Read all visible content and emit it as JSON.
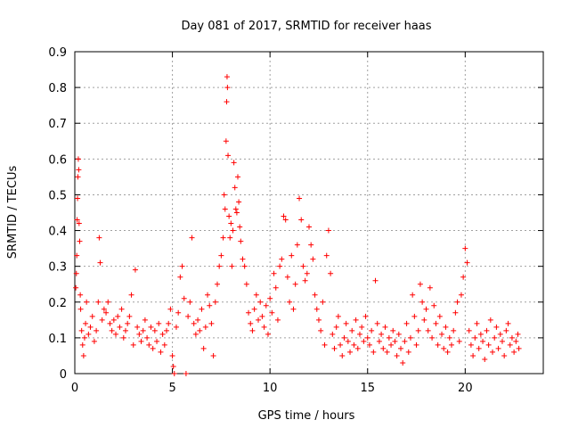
{
  "chart_data": {
    "type": "scatter",
    "title": "Day 081 of 2017, SRMTID for receiver haas",
    "xlabel": "GPS time / hours",
    "ylabel": "SRMTID / TECUs",
    "xlim": [
      0,
      24
    ],
    "ylim": [
      0,
      0.9
    ],
    "xticks": [
      0,
      5,
      10,
      15,
      20
    ],
    "yticks": [
      0,
      0.1,
      0.2,
      0.3,
      0.4,
      0.5,
      0.6,
      0.7,
      0.8,
      0.9
    ],
    "xtick_labels": [
      "0",
      "5",
      "10",
      "15",
      "20"
    ],
    "ytick_labels": [
      "0",
      "0.1",
      "0.2",
      "0.3",
      "0.4",
      "0.5",
      "0.6",
      "0.7",
      "0.8",
      "0.9"
    ],
    "grid": true,
    "marker": "+",
    "series_color": "#ff0000",
    "series": [
      {
        "name": "SRMTID",
        "points": [
          [
            0.05,
            0.24
          ],
          [
            0.08,
            0.28
          ],
          [
            0.1,
            0.33
          ],
          [
            0.12,
            0.43
          ],
          [
            0.14,
            0.49
          ],
          [
            0.16,
            0.55
          ],
          [
            0.18,
            0.6
          ],
          [
            0.2,
            0.57
          ],
          [
            0.22,
            0.42
          ],
          [
            0.25,
            0.37
          ],
          [
            0.28,
            0.22
          ],
          [
            0.3,
            0.18
          ],
          [
            0.35,
            0.12
          ],
          [
            0.4,
            0.08
          ],
          [
            0.45,
            0.05
          ],
          [
            0.5,
            0.1
          ],
          [
            0.55,
            0.14
          ],
          [
            0.6,
            0.2
          ],
          [
            0.7,
            0.11
          ],
          [
            0.8,
            0.13
          ],
          [
            0.9,
            0.16
          ],
          [
            1.0,
            0.09
          ],
          [
            1.1,
            0.12
          ],
          [
            1.2,
            0.2
          ],
          [
            1.25,
            0.38
          ],
          [
            1.3,
            0.31
          ],
          [
            1.4,
            0.15
          ],
          [
            1.5,
            0.18
          ],
          [
            1.6,
            0.17
          ],
          [
            1.7,
            0.2
          ],
          [
            1.8,
            0.14
          ],
          [
            1.9,
            0.12
          ],
          [
            2.0,
            0.15
          ],
          [
            2.1,
            0.11
          ],
          [
            2.2,
            0.16
          ],
          [
            2.3,
            0.13
          ],
          [
            2.4,
            0.18
          ],
          [
            2.5,
            0.1
          ],
          [
            2.6,
            0.12
          ],
          [
            2.7,
            0.14
          ],
          [
            2.8,
            0.16
          ],
          [
            2.9,
            0.22
          ],
          [
            3.0,
            0.08
          ],
          [
            3.1,
            0.29
          ],
          [
            3.2,
            0.13
          ],
          [
            3.3,
            0.11
          ],
          [
            3.4,
            0.09
          ],
          [
            3.5,
            0.12
          ],
          [
            3.6,
            0.15
          ],
          [
            3.7,
            0.1
          ],
          [
            3.8,
            0.08
          ],
          [
            3.9,
            0.13
          ],
          [
            4.0,
            0.07
          ],
          [
            4.1,
            0.12
          ],
          [
            4.2,
            0.09
          ],
          [
            4.3,
            0.14
          ],
          [
            4.4,
            0.06
          ],
          [
            4.5,
            0.11
          ],
          [
            4.6,
            0.08
          ],
          [
            4.7,
            0.12
          ],
          [
            4.8,
            0.14
          ],
          [
            4.9,
            0.18
          ],
          [
            5.0,
            0.05
          ],
          [
            5.05,
            0.02
          ],
          [
            5.1,
            0.0
          ],
          [
            5.2,
            0.13
          ],
          [
            5.3,
            0.17
          ],
          [
            5.4,
            0.27
          ],
          [
            5.5,
            0.3
          ],
          [
            5.6,
            0.21
          ],
          [
            5.7,
            0.0
          ],
          [
            5.8,
            0.16
          ],
          [
            5.9,
            0.2
          ],
          [
            6.0,
            0.38
          ],
          [
            6.1,
            0.14
          ],
          [
            6.2,
            0.11
          ],
          [
            6.3,
            0.15
          ],
          [
            6.4,
            0.12
          ],
          [
            6.5,
            0.18
          ],
          [
            6.6,
            0.07
          ],
          [
            6.7,
            0.13
          ],
          [
            6.8,
            0.22
          ],
          [
            6.9,
            0.19
          ],
          [
            7.0,
            0.14
          ],
          [
            7.1,
            0.05
          ],
          [
            7.2,
            0.2
          ],
          [
            7.3,
            0.25
          ],
          [
            7.4,
            0.3
          ],
          [
            7.5,
            0.33
          ],
          [
            7.6,
            0.38
          ],
          [
            7.65,
            0.5
          ],
          [
            7.7,
            0.46
          ],
          [
            7.75,
            0.65
          ],
          [
            7.78,
            0.76
          ],
          [
            7.8,
            0.83
          ],
          [
            7.82,
            0.8
          ],
          [
            7.85,
            0.61
          ],
          [
            7.9,
            0.44
          ],
          [
            7.95,
            0.38
          ],
          [
            8.0,
            0.42
          ],
          [
            8.05,
            0.3
          ],
          [
            8.1,
            0.4
          ],
          [
            8.15,
            0.59
          ],
          [
            8.2,
            0.52
          ],
          [
            8.25,
            0.46
          ],
          [
            8.3,
            0.45
          ],
          [
            8.35,
            0.55
          ],
          [
            8.4,
            0.48
          ],
          [
            8.45,
            0.41
          ],
          [
            8.5,
            0.37
          ],
          [
            8.6,
            0.32
          ],
          [
            8.7,
            0.3
          ],
          [
            8.8,
            0.25
          ],
          [
            8.9,
            0.17
          ],
          [
            9.0,
            0.14
          ],
          [
            9.1,
            0.12
          ],
          [
            9.2,
            0.18
          ],
          [
            9.3,
            0.22
          ],
          [
            9.4,
            0.15
          ],
          [
            9.5,
            0.2
          ],
          [
            9.6,
            0.16
          ],
          [
            9.7,
            0.13
          ],
          [
            9.8,
            0.19
          ],
          [
            9.9,
            0.11
          ],
          [
            10.0,
            0.21
          ],
          [
            10.1,
            0.17
          ],
          [
            10.2,
            0.28
          ],
          [
            10.3,
            0.24
          ],
          [
            10.4,
            0.15
          ],
          [
            10.5,
            0.3
          ],
          [
            10.6,
            0.32
          ],
          [
            10.7,
            0.44
          ],
          [
            10.8,
            0.43
          ],
          [
            10.9,
            0.27
          ],
          [
            11.0,
            0.2
          ],
          [
            11.1,
            0.33
          ],
          [
            11.2,
            0.18
          ],
          [
            11.3,
            0.25
          ],
          [
            11.4,
            0.36
          ],
          [
            11.5,
            0.49
          ],
          [
            11.6,
            0.43
          ],
          [
            11.7,
            0.3
          ],
          [
            11.8,
            0.26
          ],
          [
            11.9,
            0.28
          ],
          [
            12.0,
            0.41
          ],
          [
            12.1,
            0.36
          ],
          [
            12.2,
            0.32
          ],
          [
            12.3,
            0.22
          ],
          [
            12.4,
            0.18
          ],
          [
            12.5,
            0.15
          ],
          [
            12.6,
            0.12
          ],
          [
            12.7,
            0.2
          ],
          [
            12.8,
            0.08
          ],
          [
            12.9,
            0.33
          ],
          [
            13.0,
            0.4
          ],
          [
            13.1,
            0.28
          ],
          [
            13.2,
            0.11
          ],
          [
            13.3,
            0.07
          ],
          [
            13.4,
            0.13
          ],
          [
            13.5,
            0.16
          ],
          [
            13.6,
            0.08
          ],
          [
            13.7,
            0.05
          ],
          [
            13.8,
            0.1
          ],
          [
            13.9,
            0.14
          ],
          [
            14.0,
            0.09
          ],
          [
            14.1,
            0.06
          ],
          [
            14.2,
            0.12
          ],
          [
            14.3,
            0.08
          ],
          [
            14.4,
            0.15
          ],
          [
            14.5,
            0.07
          ],
          [
            14.6,
            0.11
          ],
          [
            14.7,
            0.13
          ],
          [
            14.8,
            0.09
          ],
          [
            14.9,
            0.16
          ],
          [
            15.0,
            0.1
          ],
          [
            15.1,
            0.08
          ],
          [
            15.2,
            0.12
          ],
          [
            15.3,
            0.06
          ],
          [
            15.4,
            0.26
          ],
          [
            15.5,
            0.14
          ],
          [
            15.6,
            0.09
          ],
          [
            15.7,
            0.11
          ],
          [
            15.8,
            0.07
          ],
          [
            15.9,
            0.13
          ],
          [
            16.0,
            0.06
          ],
          [
            16.1,
            0.1
          ],
          [
            16.2,
            0.08
          ],
          [
            16.3,
            0.12
          ],
          [
            16.4,
            0.09
          ],
          [
            16.5,
            0.05
          ],
          [
            16.6,
            0.11
          ],
          [
            16.7,
            0.07
          ],
          [
            16.8,
            0.03
          ],
          [
            16.9,
            0.09
          ],
          [
            17.0,
            0.14
          ],
          [
            17.1,
            0.06
          ],
          [
            17.2,
            0.1
          ],
          [
            17.3,
            0.22
          ],
          [
            17.4,
            0.16
          ],
          [
            17.5,
            0.08
          ],
          [
            17.6,
            0.12
          ],
          [
            17.7,
            0.25
          ],
          [
            17.8,
            0.2
          ],
          [
            17.9,
            0.15
          ],
          [
            18.0,
            0.18
          ],
          [
            18.1,
            0.12
          ],
          [
            18.2,
            0.24
          ],
          [
            18.3,
            0.1
          ],
          [
            18.4,
            0.19
          ],
          [
            18.5,
            0.14
          ],
          [
            18.6,
            0.08
          ],
          [
            18.7,
            0.16
          ],
          [
            18.8,
            0.11
          ],
          [
            18.9,
            0.07
          ],
          [
            19.0,
            0.13
          ],
          [
            19.1,
            0.06
          ],
          [
            19.2,
            0.1
          ],
          [
            19.3,
            0.08
          ],
          [
            19.4,
            0.12
          ],
          [
            19.5,
            0.17
          ],
          [
            19.6,
            0.2
          ],
          [
            19.7,
            0.09
          ],
          [
            19.8,
            0.22
          ],
          [
            19.9,
            0.27
          ],
          [
            20.0,
            0.35
          ],
          [
            20.1,
            0.31
          ],
          [
            20.2,
            0.12
          ],
          [
            20.3,
            0.08
          ],
          [
            20.4,
            0.05
          ],
          [
            20.5,
            0.1
          ],
          [
            20.6,
            0.14
          ],
          [
            20.7,
            0.07
          ],
          [
            20.8,
            0.11
          ],
          [
            20.9,
            0.09
          ],
          [
            21.0,
            0.04
          ],
          [
            21.1,
            0.12
          ],
          [
            21.2,
            0.08
          ],
          [
            21.3,
            0.15
          ],
          [
            21.4,
            0.06
          ],
          [
            21.5,
            0.1
          ],
          [
            21.6,
            0.13
          ],
          [
            21.7,
            0.07
          ],
          [
            21.8,
            0.11
          ],
          [
            21.9,
            0.09
          ],
          [
            22.0,
            0.05
          ],
          [
            22.1,
            0.12
          ],
          [
            22.2,
            0.14
          ],
          [
            22.3,
            0.08
          ],
          [
            22.4,
            0.1
          ],
          [
            22.5,
            0.06
          ],
          [
            22.6,
            0.09
          ],
          [
            22.7,
            0.11
          ],
          [
            22.75,
            0.07
          ]
        ]
      }
    ]
  }
}
